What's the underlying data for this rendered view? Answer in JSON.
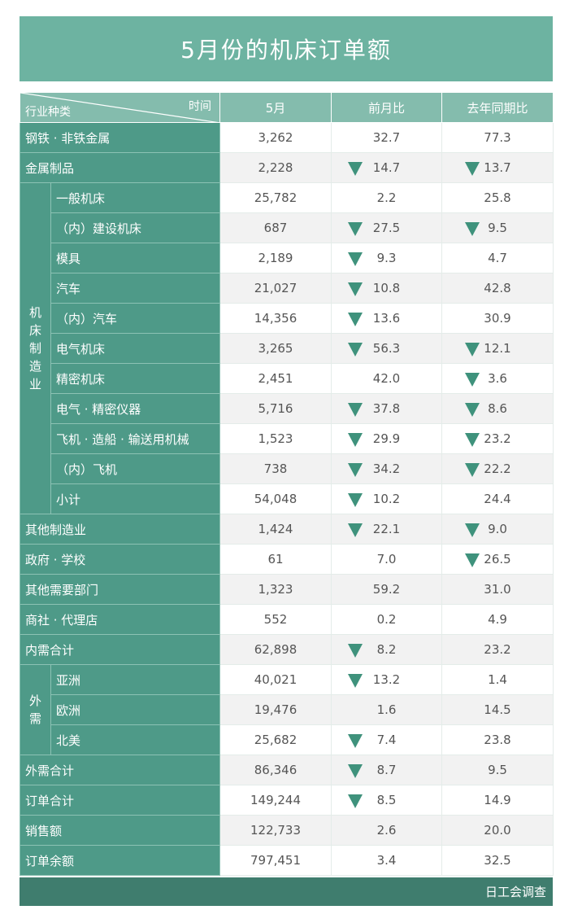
{
  "title": "5月份的机床订单额",
  "header": {
    "time": "时间",
    "category": "行业种类",
    "col1": "5月",
    "col2": "前月比",
    "col3": "去年同期比"
  },
  "footer": "日工会调查",
  "colors": {
    "title_bg": "#6db3a1",
    "header_bg": "#84bcad",
    "label_bg": "#4e9a88",
    "footer_bg": "#3f7d6e",
    "down_arrow": "#3f927c"
  },
  "groups": {
    "machine": "机床制造业",
    "foreign": "外需"
  },
  "rows": [
    {
      "label": "钢铁 · 非铁金属",
      "value": "3,262",
      "mom": "32.7",
      "mom_down": false,
      "yoy": "77.3",
      "yoy_down": false
    },
    {
      "label": "金属制品",
      "value": "2,228",
      "mom": "14.7",
      "mom_down": true,
      "yoy": "13.7",
      "yoy_down": true
    },
    {
      "label": "一般机床",
      "group": "machine",
      "value": "25,782",
      "mom": "2.2",
      "mom_down": false,
      "yoy": "25.8",
      "yoy_down": false
    },
    {
      "label": "（内）建设机床",
      "group": "machine",
      "value": "687",
      "mom": "27.5",
      "mom_down": true,
      "yoy": "9.5",
      "yoy_down": true
    },
    {
      "label": "模具",
      "group": "machine",
      "value": "2,189",
      "mom": "9.3",
      "mom_down": true,
      "yoy": "4.7",
      "yoy_down": false
    },
    {
      "label": "汽车",
      "group": "machine",
      "value": "21,027",
      "mom": "10.8",
      "mom_down": true,
      "yoy": "42.8",
      "yoy_down": false
    },
    {
      "label": "（内）汽车",
      "group": "machine",
      "value": "14,356",
      "mom": "13.6",
      "mom_down": true,
      "yoy": "30.9",
      "yoy_down": false
    },
    {
      "label": "电气机床",
      "group": "machine",
      "value": "3,265",
      "mom": "56.3",
      "mom_down": true,
      "yoy": "12.1",
      "yoy_down": true
    },
    {
      "label": "精密机床",
      "group": "machine",
      "value": "2,451",
      "mom": "42.0",
      "mom_down": false,
      "yoy": "3.6",
      "yoy_down": true
    },
    {
      "label": "电气 · 精密仪器",
      "group": "machine",
      "value": "5,716",
      "mom": "37.8",
      "mom_down": true,
      "yoy": "8.6",
      "yoy_down": true
    },
    {
      "label": "飞机 · 造船 · 输送用机械",
      "group": "machine",
      "value": "1,523",
      "mom": "29.9",
      "mom_down": true,
      "yoy": "23.2",
      "yoy_down": true
    },
    {
      "label": "（内）飞机",
      "group": "machine",
      "value": "738",
      "mom": "34.2",
      "mom_down": true,
      "yoy": "22.2",
      "yoy_down": true
    },
    {
      "label": "小计",
      "group": "machine",
      "value": "54,048",
      "mom": "10.2",
      "mom_down": true,
      "yoy": "24.4",
      "yoy_down": false
    },
    {
      "label": "其他制造业",
      "value": "1,424",
      "mom": "22.1",
      "mom_down": true,
      "yoy": "9.0",
      "yoy_down": true
    },
    {
      "label": "政府 · 学校",
      "value": "61",
      "mom": "7.0",
      "mom_down": false,
      "yoy": "26.5",
      "yoy_down": true
    },
    {
      "label": "其他需要部门",
      "value": "1,323",
      "mom": "59.2",
      "mom_down": false,
      "yoy": "31.0",
      "yoy_down": false
    },
    {
      "label": "商社 · 代理店",
      "value": "552",
      "mom": "0.2",
      "mom_down": false,
      "yoy": "4.9",
      "yoy_down": false
    },
    {
      "label": "内需合计",
      "value": "62,898",
      "mom": "8.2",
      "mom_down": true,
      "yoy": "23.2",
      "yoy_down": false
    },
    {
      "label": "亚洲",
      "group": "foreign",
      "value": "40,021",
      "mom": "13.2",
      "mom_down": true,
      "yoy": "1.4",
      "yoy_down": false
    },
    {
      "label": "欧洲",
      "group": "foreign",
      "value": "19,476",
      "mom": "1.6",
      "mom_down": false,
      "yoy": "14.5",
      "yoy_down": false
    },
    {
      "label": "北美",
      "group": "foreign",
      "value": "25,682",
      "mom": "7.4",
      "mom_down": true,
      "yoy": "23.8",
      "yoy_down": false
    },
    {
      "label": "外需合计",
      "value": "86,346",
      "mom": "8.7",
      "mom_down": true,
      "yoy": "9.5",
      "yoy_down": false
    },
    {
      "label": "订单合计",
      "value": "149,244",
      "mom": "8.5",
      "mom_down": true,
      "yoy": "14.9",
      "yoy_down": false
    },
    {
      "label": "销售额",
      "value": "122,733",
      "mom": "2.6",
      "mom_down": false,
      "yoy": "20.0",
      "yoy_down": false
    },
    {
      "label": "订单余额",
      "value": "797,451",
      "mom": "3.4",
      "mom_down": false,
      "yoy": "32.5",
      "yoy_down": false
    }
  ]
}
